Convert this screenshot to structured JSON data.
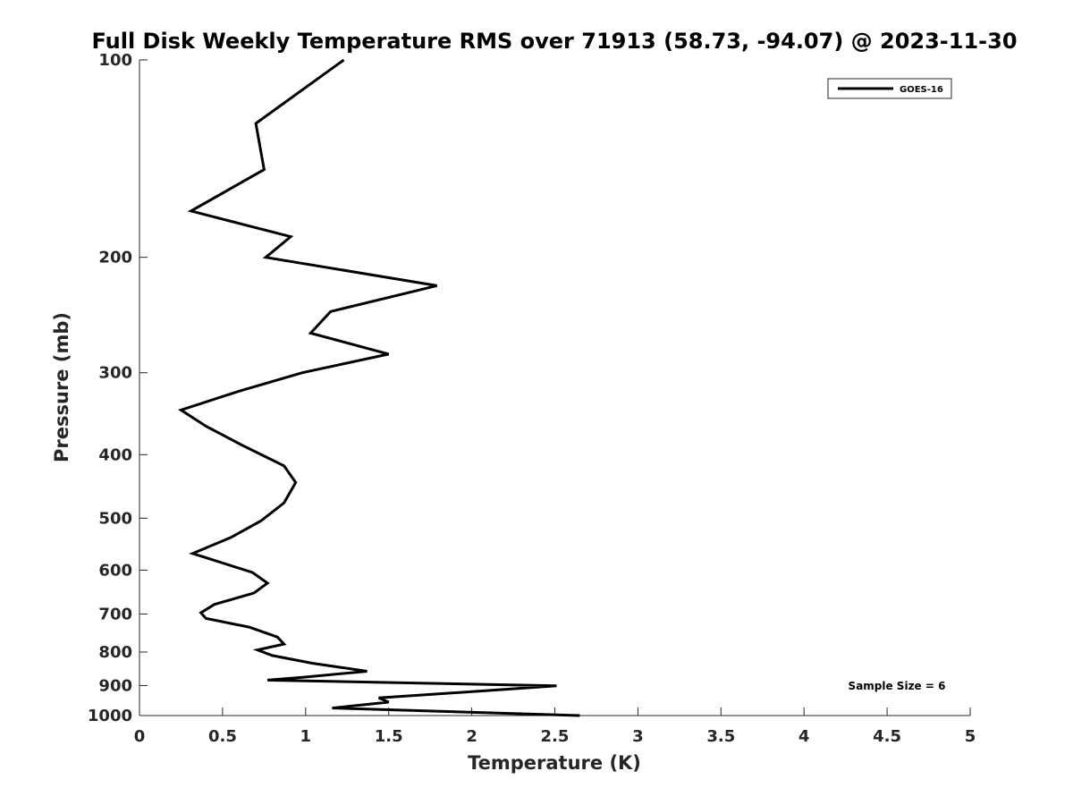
{
  "chart_data": {
    "type": "line",
    "title": "Full Disk Weekly Temperature RMS over 71913 (58.73, -94.07) @ 2023-11-30",
    "xlabel": "Temperature (K)",
    "ylabel": "Pressure (mb)",
    "xlim": [
      0,
      5
    ],
    "ylim": [
      100,
      1000
    ],
    "y_scale": "log",
    "y_reversed": true,
    "grid": false,
    "x_ticks": [
      0,
      0.5,
      1,
      1.5,
      2,
      2.5,
      3,
      3.5,
      4,
      4.5,
      5
    ],
    "x_tick_labels": [
      "0",
      "0.5",
      "1",
      "1.5",
      "2",
      "2.5",
      "3",
      "3.5",
      "4",
      "4.5",
      "5"
    ],
    "y_ticks": [
      100,
      200,
      300,
      400,
      500,
      600,
      700,
      800,
      900,
      1000
    ],
    "y_tick_labels": [
      "100",
      "200",
      "300",
      "400",
      "500",
      "600",
      "700",
      "800",
      "900",
      "1000"
    ],
    "legend_position": "top-right",
    "series": [
      {
        "name": "GOES-16",
        "color": "#000000",
        "x": [
          1.23,
          0.7,
          0.75,
          0.31,
          0.91,
          0.76,
          1.79,
          1.15,
          1.03,
          1.5,
          0.98,
          0.6,
          0.25,
          0.4,
          0.61,
          0.87,
          0.94,
          0.87,
          0.73,
          0.55,
          0.32,
          0.68,
          0.77,
          0.69,
          0.45,
          0.37,
          0.4,
          0.66,
          0.83,
          0.87,
          0.71,
          0.8,
          1.04,
          1.37,
          0.99,
          0.77,
          2.51,
          1.44,
          1.5,
          1.16,
          2.65
        ],
        "y": [
          100,
          125,
          147,
          170,
          186,
          200,
          221,
          242,
          261,
          281,
          300,
          320,
          342,
          362,
          386,
          416,
          441,
          474,
          505,
          535,
          566,
          605,
          628,
          650,
          677,
          697,
          711,
          733,
          759,
          778,
          794,
          810,
          832,
          856,
          874,
          883,
          901,
          940,
          954,
          974,
          1000
        ]
      }
    ],
    "annotations": [
      {
        "text": "Sample Size = 6",
        "position": "bottom-right"
      }
    ]
  }
}
